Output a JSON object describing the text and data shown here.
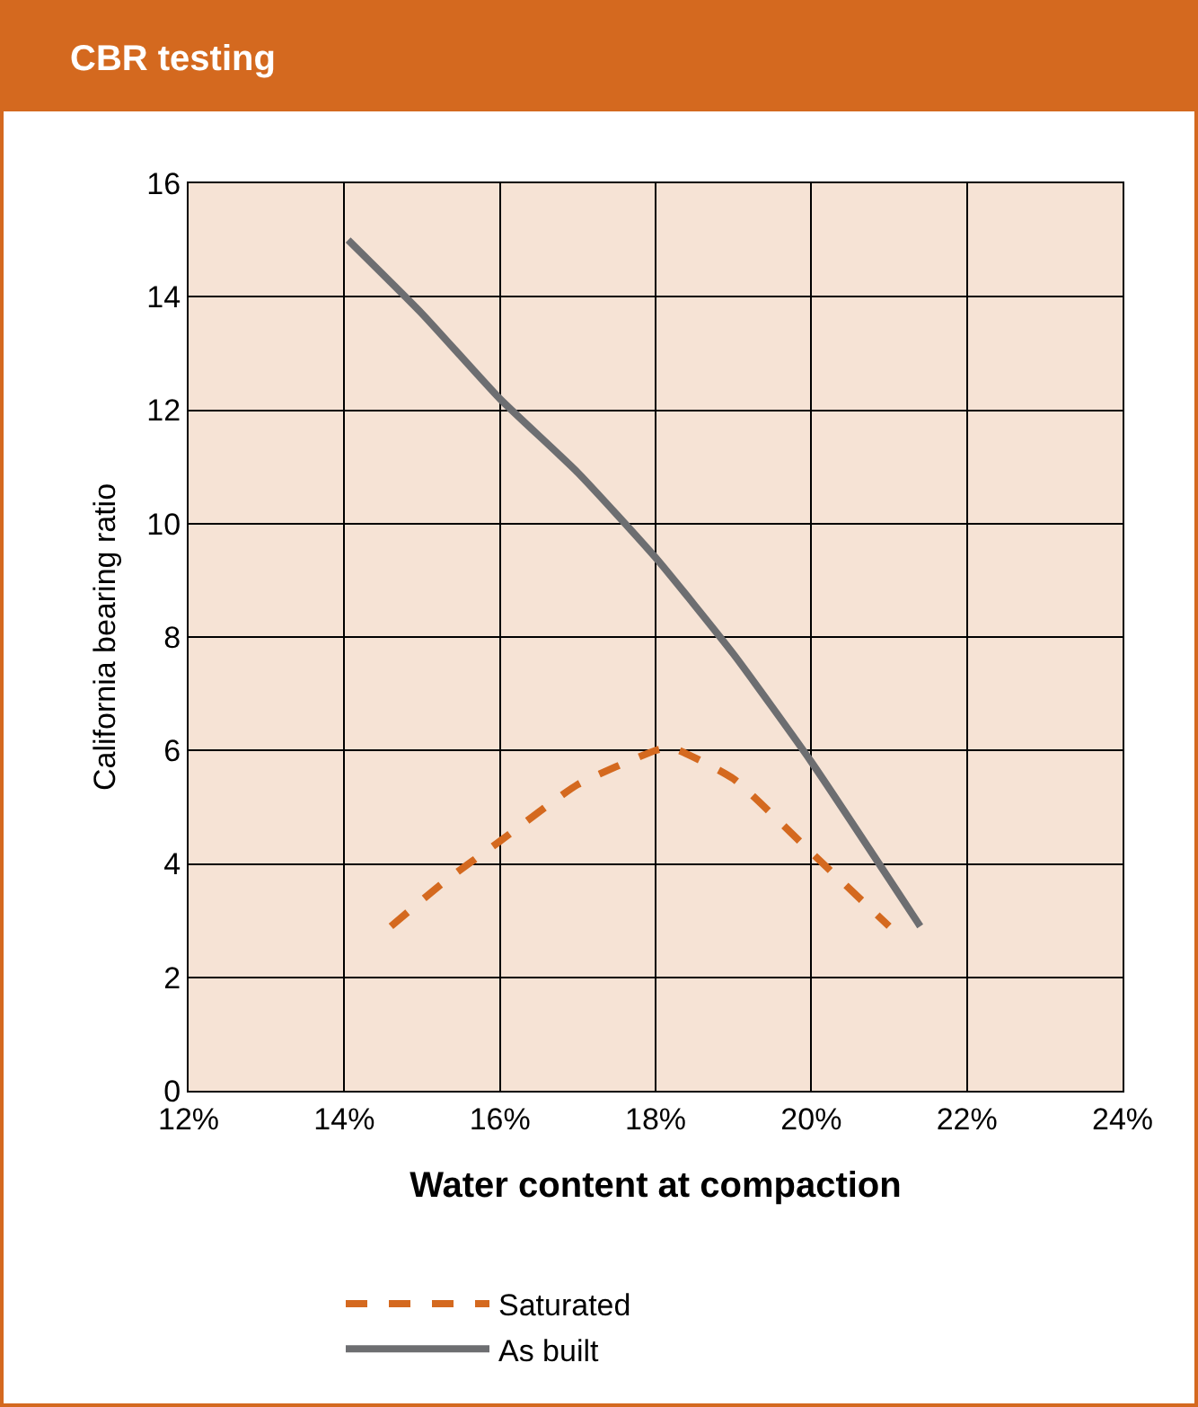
{
  "chart_data": {
    "type": "line",
    "title": "CBR testing",
    "xlabel": "Water content at compaction",
    "ylabel": "California bearing ratio",
    "xlim": [
      12,
      24
    ],
    "xticks": [
      {
        "value": 12,
        "label": "12%"
      },
      {
        "value": 14,
        "label": "14%"
      },
      {
        "value": 16,
        "label": "16%"
      },
      {
        "value": 18,
        "label": "18%"
      },
      {
        "value": 20,
        "label": "20%"
      },
      {
        "value": 22,
        "label": "22%"
      },
      {
        "value": 24,
        "label": "24%"
      }
    ],
    "ylim": [
      0,
      16
    ],
    "yticks": [
      0,
      2,
      4,
      6,
      8,
      10,
      12,
      14,
      16
    ],
    "grid": true,
    "legend": "bottom",
    "series": [
      {
        "name": "Saturated",
        "color": "#d4691f",
        "line_style": "dashed",
        "x": [
          14.6,
          15.3,
          16,
          17,
          18,
          18.2,
          19,
          20,
          21
        ],
        "values": [
          2.9,
          3.7,
          4.4,
          5.4,
          6.0,
          6.05,
          5.5,
          4.2,
          2.9
        ]
      },
      {
        "name": "As built",
        "color": "#6d6e71",
        "line_style": "solid",
        "x": [
          14.05,
          15,
          16,
          17,
          18,
          19,
          20,
          21.4
        ],
        "values": [
          15.0,
          13.7,
          12.2,
          10.9,
          9.4,
          7.7,
          5.8,
          2.9
        ]
      }
    ]
  }
}
